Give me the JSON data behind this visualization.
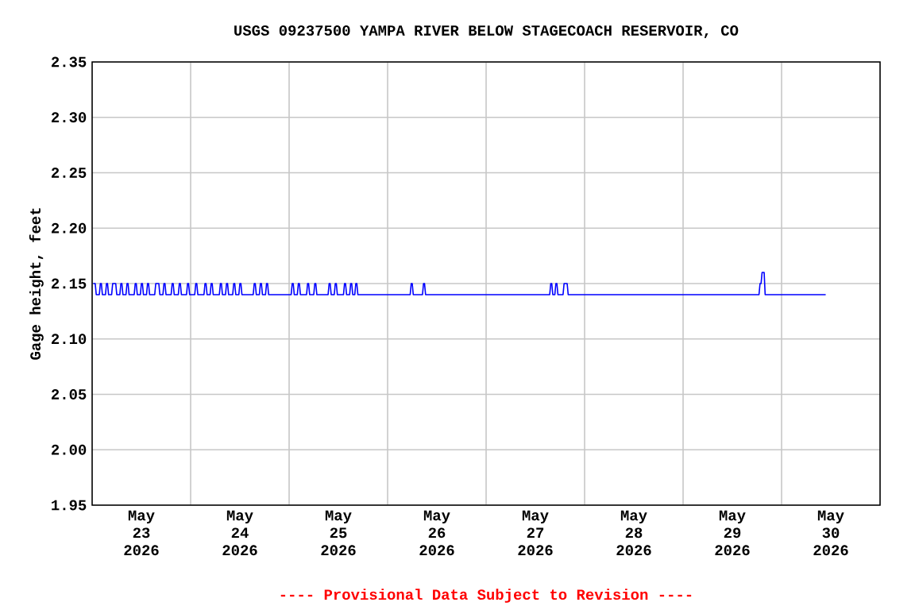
{
  "chart_data": {
    "type": "line",
    "title": "USGS 09237500 YAMPA RIVER BELOW STAGECOACH RESERVOIR, CO",
    "ylabel": "Gage height, feet",
    "annotations": [
      "---- Provisional Data Subject to Revision ----"
    ],
    "color": "#0000ff",
    "grid": true,
    "xlim": [
      "2026-05-23T00:00",
      "2026-05-31T00:00"
    ],
    "ylim": [
      1.95,
      2.35
    ],
    "yticks": [
      {
        "value": 1.95,
        "label": "1.95"
      },
      {
        "value": 2.0,
        "label": "2.00"
      },
      {
        "value": 2.05,
        "label": "2.05"
      },
      {
        "value": 2.1,
        "label": "2.10"
      },
      {
        "value": 2.15,
        "label": "2.15"
      },
      {
        "value": 2.2,
        "label": "2.20"
      },
      {
        "value": 2.25,
        "label": "2.25"
      },
      {
        "value": 2.3,
        "label": "2.30"
      },
      {
        "value": 2.35,
        "label": "2.35"
      }
    ],
    "xticks": [
      {
        "value": "2026-05-24T00:00",
        "label": null
      },
      {
        "value": "2026-05-25T00:00",
        "label": null
      },
      {
        "value": "2026-05-26T00:00",
        "label": null
      },
      {
        "value": "2026-05-27T00:00",
        "label": null
      },
      {
        "value": "2026-05-28T00:00",
        "label": null
      },
      {
        "value": "2026-05-29T00:00",
        "label": null
      },
      {
        "value": "2026-05-30T00:00",
        "label": null
      },
      {
        "value": "2026-05-23T12:00",
        "label": "May 23 2026"
      },
      {
        "value": "2026-05-24T12:00",
        "label": "May 24 2026"
      },
      {
        "value": "2026-05-25T12:00",
        "label": "May 25 2026"
      },
      {
        "value": "2026-05-26T12:00",
        "label": "May 26 2026"
      },
      {
        "value": "2026-05-27T12:00",
        "label": "May 27 2026"
      },
      {
        "value": "2026-05-28T12:00",
        "label": "May 28 2026"
      },
      {
        "value": "2026-05-29T12:00",
        "label": "May 29 2026"
      },
      {
        "value": "2026-05-30T12:00",
        "label": "May 30 2026"
      }
    ],
    "x": [
      "2026-05-23T00:15",
      "2026-05-23T00:45",
      "2026-05-23T01:00",
      "2026-05-23T01:45",
      "2026-05-23T02:00",
      "2026-05-23T02:15",
      "2026-05-23T02:30",
      "2026-05-23T03:15",
      "2026-05-23T03:30",
      "2026-05-23T03:45",
      "2026-05-23T04:00",
      "2026-05-23T04:45",
      "2026-05-23T05:00",
      "2026-05-23T05:45",
      "2026-05-23T06:00",
      "2026-05-23T06:45",
      "2026-05-23T07:00",
      "2026-05-23T07:15",
      "2026-05-23T07:30",
      "2026-05-23T08:15",
      "2026-05-23T08:30",
      "2026-05-23T08:45",
      "2026-05-23T09:00",
      "2026-05-23T10:15",
      "2026-05-23T10:30",
      "2026-05-23T10:45",
      "2026-05-23T11:00",
      "2026-05-23T11:45",
      "2026-05-23T12:00",
      "2026-05-23T12:15",
      "2026-05-23T12:30",
      "2026-05-23T13:15",
      "2026-05-23T13:30",
      "2026-05-23T13:45",
      "2026-05-23T14:00",
      "2026-05-23T15:15",
      "2026-05-23T15:30",
      "2026-05-23T16:15",
      "2026-05-23T16:30",
      "2026-05-23T17:15",
      "2026-05-23T17:30",
      "2026-05-23T17:45",
      "2026-05-23T18:00",
      "2026-05-23T19:15",
      "2026-05-23T19:30",
      "2026-05-23T19:45",
      "2026-05-23T20:00",
      "2026-05-23T21:00",
      "2026-05-23T21:15",
      "2026-05-23T21:30",
      "2026-05-23T21:45",
      "2026-05-23T23:00",
      "2026-05-23T23:15",
      "2026-05-23T23:30",
      "2026-05-23T23:45",
      "2026-05-24T01:00",
      "2026-05-24T01:15",
      "2026-05-24T01:30",
      "2026-05-24T01:45",
      "2026-05-24T03:15",
      "2026-05-24T03:30",
      "2026-05-24T03:45",
      "2026-05-24T04:00",
      "2026-05-24T04:45",
      "2026-05-24T05:00",
      "2026-05-24T05:15",
      "2026-05-24T05:30",
      "2026-05-24T07:00",
      "2026-05-24T07:15",
      "2026-05-24T07:30",
      "2026-05-24T07:45",
      "2026-05-24T08:30",
      "2026-05-24T08:45",
      "2026-05-24T09:00",
      "2026-05-24T09:15",
      "2026-05-24T10:15",
      "2026-05-24T10:30",
      "2026-05-24T10:45",
      "2026-05-24T11:00",
      "2026-05-24T11:45",
      "2026-05-24T12:00",
      "2026-05-24T12:15",
      "2026-05-24T12:30",
      "2026-05-24T15:15",
      "2026-05-24T15:30",
      "2026-05-24T15:45",
      "2026-05-24T16:00",
      "2026-05-24T16:45",
      "2026-05-24T17:00",
      "2026-05-24T17:15",
      "2026-05-24T17:30",
      "2026-05-24T18:15",
      "2026-05-24T18:30",
      "2026-05-24T18:45",
      "2026-05-24T19:00",
      "2026-05-25T00:30",
      "2026-05-25T00:45",
      "2026-05-25T01:00",
      "2026-05-25T01:15",
      "2026-05-25T02:00",
      "2026-05-25T02:15",
      "2026-05-25T02:30",
      "2026-05-25T02:45",
      "2026-05-25T04:15",
      "2026-05-25T04:30",
      "2026-05-25T04:45",
      "2026-05-25T05:00",
      "2026-05-25T06:00",
      "2026-05-25T06:15",
      "2026-05-25T06:30",
      "2026-05-25T06:45",
      "2026-05-25T09:30",
      "2026-05-25T09:45",
      "2026-05-25T10:00",
      "2026-05-25T10:15",
      "2026-05-25T11:00",
      "2026-05-25T11:15",
      "2026-05-25T11:30",
      "2026-05-25T11:45",
      "2026-05-25T13:15",
      "2026-05-25T13:30",
      "2026-05-25T13:45",
      "2026-05-25T14:00",
      "2026-05-25T14:45",
      "2026-05-25T15:00",
      "2026-05-25T15:15",
      "2026-05-25T15:30",
      "2026-05-25T16:00",
      "2026-05-25T16:15",
      "2026-05-25T16:30",
      "2026-05-25T16:45",
      "2026-05-26T05:30",
      "2026-05-26T05:45",
      "2026-05-26T06:00",
      "2026-05-26T06:15",
      "2026-05-26T08:30",
      "2026-05-26T08:45",
      "2026-05-26T09:00",
      "2026-05-26T09:15",
      "2026-05-27T15:30",
      "2026-05-27T15:45",
      "2026-05-27T16:00",
      "2026-05-27T16:15",
      "2026-05-27T16:45",
      "2026-05-27T17:00",
      "2026-05-27T17:15",
      "2026-05-27T17:30",
      "2026-05-27T18:45",
      "2026-05-27T19:00",
      "2026-05-27T19:45",
      "2026-05-27T20:00",
      "2026-05-29T18:30",
      "2026-05-29T18:45",
      "2026-05-29T19:00",
      "2026-05-29T19:15",
      "2026-05-29T19:45",
      "2026-05-29T20:00",
      "2026-05-30T10:45"
    ],
    "values": [
      2.15,
      2.15,
      2.14,
      2.14,
      2.15,
      2.15,
      2.14,
      2.14,
      2.15,
      2.15,
      2.14,
      2.14,
      2.15,
      2.15,
      2.14,
      2.14,
      2.15,
      2.15,
      2.14,
      2.14,
      2.15,
      2.15,
      2.14,
      2.14,
      2.15,
      2.15,
      2.14,
      2.14,
      2.15,
      2.15,
      2.14,
      2.14,
      2.15,
      2.15,
      2.14,
      2.14,
      2.15,
      2.15,
      2.14,
      2.14,
      2.15,
      2.15,
      2.14,
      2.14,
      2.15,
      2.15,
      2.14,
      2.14,
      2.15,
      2.15,
      2.14,
      2.14,
      2.15,
      2.15,
      2.14,
      2.14,
      2.15,
      2.15,
      2.14,
      2.14,
      2.15,
      2.15,
      2.14,
      2.14,
      2.15,
      2.15,
      2.14,
      2.14,
      2.15,
      2.15,
      2.14,
      2.14,
      2.15,
      2.15,
      2.14,
      2.14,
      2.15,
      2.15,
      2.14,
      2.14,
      2.15,
      2.15,
      2.14,
      2.14,
      2.15,
      2.15,
      2.14,
      2.14,
      2.15,
      2.15,
      2.14,
      2.14,
      2.15,
      2.15,
      2.14,
      2.14,
      2.15,
      2.15,
      2.14,
      2.14,
      2.15,
      2.15,
      2.14,
      2.14,
      2.15,
      2.15,
      2.14,
      2.14,
      2.15,
      2.15,
      2.14,
      2.14,
      2.15,
      2.15,
      2.14,
      2.14,
      2.15,
      2.15,
      2.14,
      2.14,
      2.15,
      2.15,
      2.14,
      2.14,
      2.15,
      2.15,
      2.14,
      2.14,
      2.15,
      2.15,
      2.14,
      2.14,
      2.15,
      2.15,
      2.14,
      2.14,
      2.15,
      2.15,
      2.14,
      2.14,
      2.15,
      2.15,
      2.14,
      2.14,
      2.15,
      2.15,
      2.14,
      2.14,
      2.15,
      2.15,
      2.14,
      2.14,
      2.15,
      2.15,
      2.16,
      2.16,
      2.14,
      2.14
    ]
  }
}
